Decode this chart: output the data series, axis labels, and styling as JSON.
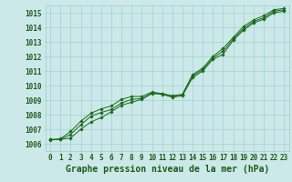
{
  "title": "Graphe pression niveau de la mer (hPa)",
  "x_hours": [
    0,
    1,
    2,
    3,
    4,
    5,
    6,
    7,
    8,
    9,
    10,
    11,
    12,
    13,
    14,
    15,
    16,
    17,
    18,
    19,
    20,
    21,
    22,
    23
  ],
  "line1": [
    1006.3,
    1006.3,
    1006.4,
    1007.0,
    1007.5,
    1007.8,
    1008.2,
    1008.65,
    1008.85,
    1009.05,
    1009.45,
    1009.4,
    1009.2,
    1009.3,
    1010.55,
    1011.0,
    1011.8,
    1012.15,
    1013.1,
    1013.8,
    1014.3,
    1014.55,
    1015.0,
    1015.1
  ],
  "line2": [
    1006.3,
    1006.3,
    1006.65,
    1007.3,
    1007.9,
    1008.15,
    1008.35,
    1008.8,
    1009.05,
    1009.1,
    1009.5,
    1009.42,
    1009.25,
    1009.35,
    1010.65,
    1011.1,
    1011.9,
    1012.35,
    1013.2,
    1013.9,
    1014.4,
    1014.65,
    1015.1,
    1015.2
  ],
  "line3": [
    1006.25,
    1006.35,
    1006.85,
    1007.55,
    1008.1,
    1008.4,
    1008.6,
    1009.05,
    1009.25,
    1009.25,
    1009.55,
    1009.45,
    1009.3,
    1009.4,
    1010.75,
    1011.2,
    1012.0,
    1012.55,
    1013.3,
    1014.05,
    1014.5,
    1014.8,
    1015.2,
    1015.3
  ],
  "ylim": [
    1005.5,
    1015.5
  ],
  "yticks": [
    1006,
    1007,
    1008,
    1009,
    1010,
    1011,
    1012,
    1013,
    1014,
    1015
  ],
  "bg_color": "#cce8e8",
  "grid_color": "#99cccc",
  "line_color": "#1a6b1a",
  "marker_color": "#1a6b1a",
  "title_color": "#1a5c1a",
  "title_fontsize": 7.0,
  "tick_fontsize": 5.5
}
